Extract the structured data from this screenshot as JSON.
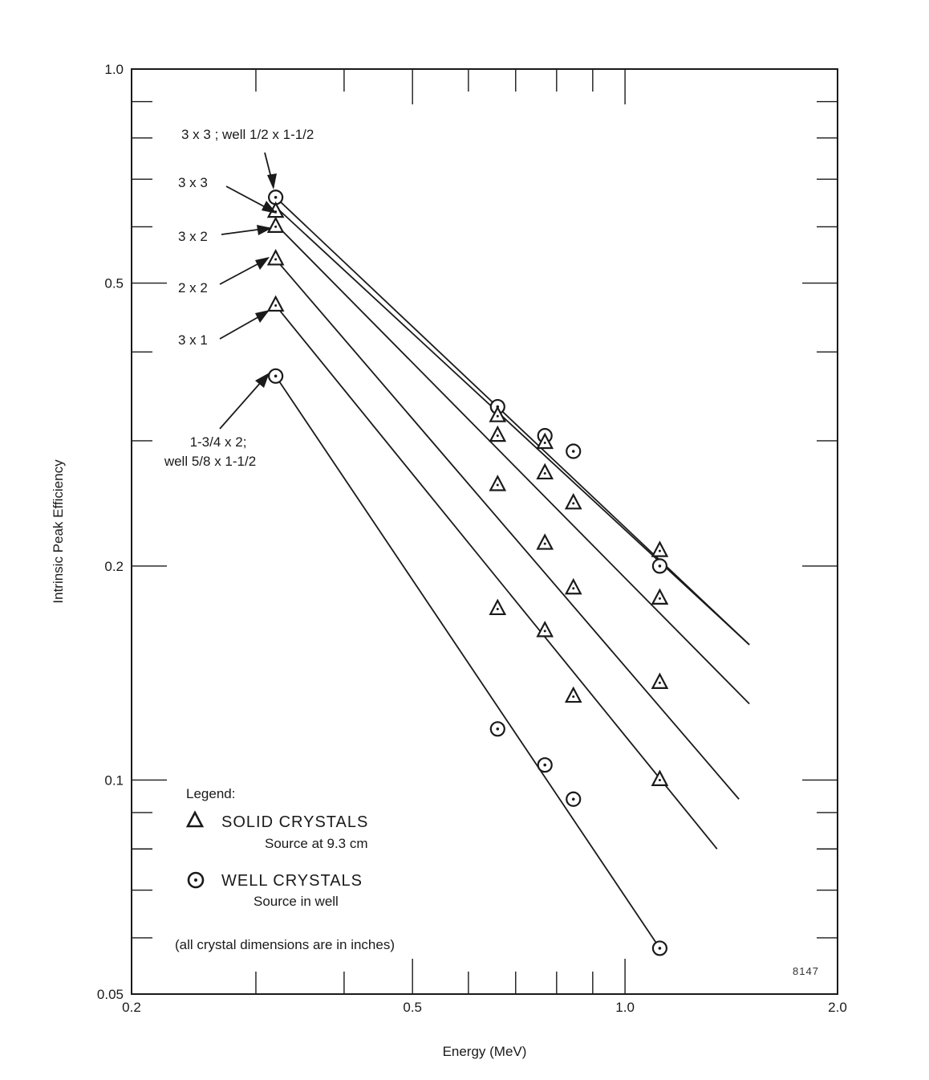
{
  "chart_data": {
    "type": "scatter",
    "xlabel": "Energy (MeV)",
    "ylabel": "Intrinsic Peak Efficiency",
    "xscale": "log",
    "yscale": "log",
    "xlim": [
      0.2,
      2.0
    ],
    "ylim": [
      0.05,
      1.0
    ],
    "x_tick_labels": [
      "0.2",
      "0.5",
      "1.0",
      "2.0"
    ],
    "y_tick_labels": [
      "0.05",
      "0.1",
      "0.2",
      "0.5",
      "1.0"
    ],
    "grid": false,
    "series": [
      {
        "name": "3 x 3 ; well 1/2 x 1-1/2",
        "marker": "circle",
        "points": [
          [
            0.32,
            0.66
          ],
          [
            0.66,
            0.335
          ],
          [
            0.77,
            0.305
          ],
          [
            0.845,
            0.29
          ],
          [
            1.12,
            0.2
          ]
        ],
        "fit": [
          [
            0.32,
            0.66
          ],
          [
            1.5,
            0.155
          ]
        ]
      },
      {
        "name": "3 x 3",
        "marker": "triangle",
        "points": [
          [
            0.32,
            0.63
          ],
          [
            0.66,
            0.325
          ],
          [
            0.77,
            0.298
          ],
          [
            1.12,
            0.21
          ]
        ],
        "fit": [
          [
            0.32,
            0.64
          ],
          [
            1.5,
            0.155
          ]
        ]
      },
      {
        "name": "3 x 2",
        "marker": "triangle",
        "points": [
          [
            0.32,
            0.6
          ],
          [
            0.66,
            0.305
          ],
          [
            0.77,
            0.27
          ],
          [
            0.845,
            0.245
          ],
          [
            1.12,
            0.18
          ]
        ],
        "fit": [
          [
            0.32,
            0.605
          ],
          [
            1.5,
            0.128
          ]
        ]
      },
      {
        "name": "2 x 2",
        "marker": "triangle",
        "points": [
          [
            0.32,
            0.54
          ],
          [
            0.66,
            0.26
          ],
          [
            0.77,
            0.215
          ],
          [
            0.845,
            0.186
          ],
          [
            1.12,
            0.137
          ]
        ],
        "fit": [
          [
            0.32,
            0.54
          ],
          [
            1.45,
            0.094
          ]
        ]
      },
      {
        "name": "3 x 1",
        "marker": "triangle",
        "points": [
          [
            0.32,
            0.465
          ],
          [
            0.66,
            0.174
          ],
          [
            0.77,
            0.162
          ],
          [
            0.845,
            0.131
          ],
          [
            1.12,
            0.1
          ]
        ],
        "fit": [
          [
            0.32,
            0.465
          ],
          [
            1.35,
            0.08
          ]
        ]
      },
      {
        "name": "1-3/4 x 2; well 5/8 x 1-1/2",
        "marker": "circle",
        "points": [
          [
            0.32,
            0.37
          ],
          [
            0.66,
            0.118
          ],
          [
            0.77,
            0.105
          ],
          [
            0.845,
            0.094
          ],
          [
            1.12,
            0.058
          ]
        ],
        "fit": [
          [
            0.32,
            0.37
          ],
          [
            1.12,
            0.058
          ]
        ]
      }
    ],
    "annotations": [
      {
        "text": "3 x 3 ; well 1/2 x 1-1/2"
      },
      {
        "text": "3 x 3"
      },
      {
        "text": "3 x 2"
      },
      {
        "text": "2 x 2"
      },
      {
        "text": "3 x 1"
      },
      {
        "text": "1-3/4 x 2;"
      },
      {
        "text": "well 5/8 x 1-1/2"
      }
    ],
    "legend": {
      "title": "Legend:",
      "placement": "bottom-left",
      "solid_label": "SOLID CRYSTALS",
      "solid_note": "Source at 9.3 cm",
      "well_label": "WELL CRYSTALS",
      "well_note": "Source in well",
      "footnote": "(all crystal dimensions are in inches)"
    },
    "figure_id": "8147"
  }
}
